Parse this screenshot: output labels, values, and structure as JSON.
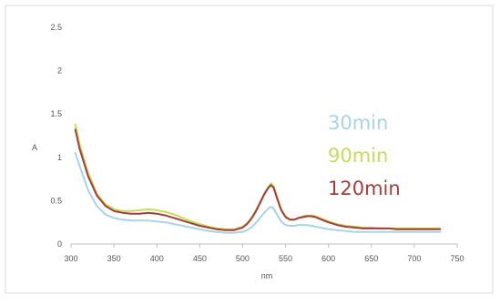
{
  "chart_data": {
    "type": "line",
    "xlabel": "nm",
    "ylabel": "A",
    "xlim": [
      300,
      750
    ],
    "ylim": [
      0,
      2.5
    ],
    "x_ticks": [
      "300",
      "350",
      "400",
      "450",
      "500",
      "550",
      "600",
      "650",
      "700",
      "750"
    ],
    "y_ticks": [
      "0",
      "0.5",
      "1",
      "1.5",
      "2",
      "2.5"
    ],
    "grid": false,
    "legend_placement": "inside-right",
    "x": [
      305,
      310,
      320,
      330,
      340,
      350,
      360,
      370,
      380,
      390,
      400,
      410,
      420,
      430,
      440,
      450,
      460,
      470,
      480,
      490,
      500,
      505,
      510,
      515,
      520,
      525,
      530,
      533,
      536,
      540,
      545,
      550,
      555,
      560,
      565,
      570,
      575,
      580,
      585,
      590,
      600,
      610,
      620,
      630,
      640,
      650,
      660,
      670,
      680,
      690,
      700,
      710,
      720,
      730
    ],
    "series": [
      {
        "name": "30min",
        "color": "#a9d4e6",
        "values": [
          1.05,
          0.9,
          0.62,
          0.44,
          0.34,
          0.3,
          0.28,
          0.27,
          0.27,
          0.27,
          0.26,
          0.25,
          0.23,
          0.21,
          0.19,
          0.17,
          0.15,
          0.14,
          0.13,
          0.13,
          0.14,
          0.16,
          0.19,
          0.24,
          0.3,
          0.36,
          0.41,
          0.43,
          0.41,
          0.34,
          0.26,
          0.22,
          0.21,
          0.21,
          0.22,
          0.22,
          0.22,
          0.21,
          0.2,
          0.19,
          0.17,
          0.16,
          0.15,
          0.14,
          0.14,
          0.14,
          0.14,
          0.14,
          0.14,
          0.14,
          0.14,
          0.14,
          0.14,
          0.14
        ]
      },
      {
        "name": "90min",
        "color": "#c6dc5a",
        "values": [
          1.38,
          1.15,
          0.82,
          0.58,
          0.46,
          0.4,
          0.38,
          0.38,
          0.39,
          0.4,
          0.39,
          0.37,
          0.34,
          0.3,
          0.26,
          0.23,
          0.2,
          0.18,
          0.17,
          0.17,
          0.2,
          0.24,
          0.3,
          0.38,
          0.48,
          0.58,
          0.66,
          0.7,
          0.67,
          0.55,
          0.4,
          0.32,
          0.28,
          0.28,
          0.3,
          0.32,
          0.33,
          0.33,
          0.32,
          0.3,
          0.26,
          0.23,
          0.21,
          0.2,
          0.19,
          0.19,
          0.18,
          0.18,
          0.18,
          0.18,
          0.18,
          0.18,
          0.18,
          0.18
        ]
      },
      {
        "name": "120min",
        "color": "#a33f3b",
        "values": [
          1.32,
          1.1,
          0.78,
          0.56,
          0.44,
          0.38,
          0.36,
          0.35,
          0.35,
          0.36,
          0.35,
          0.33,
          0.3,
          0.27,
          0.24,
          0.21,
          0.19,
          0.17,
          0.16,
          0.16,
          0.19,
          0.23,
          0.29,
          0.37,
          0.47,
          0.57,
          0.65,
          0.68,
          0.65,
          0.53,
          0.39,
          0.31,
          0.28,
          0.28,
          0.3,
          0.31,
          0.32,
          0.32,
          0.31,
          0.29,
          0.25,
          0.22,
          0.2,
          0.19,
          0.18,
          0.18,
          0.18,
          0.18,
          0.17,
          0.17,
          0.17,
          0.17,
          0.17,
          0.17
        ]
      }
    ]
  }
}
